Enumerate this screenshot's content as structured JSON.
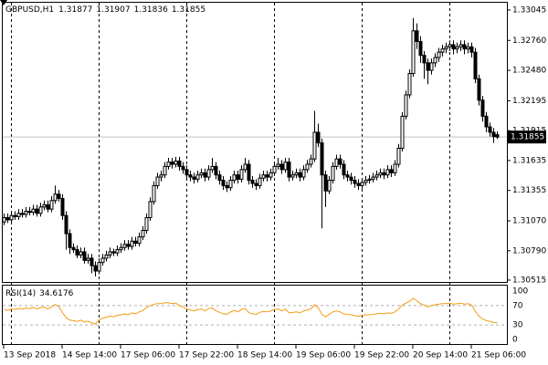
{
  "chart_data": {
    "type": "candlestick",
    "symbol": "GBPUSD,H1",
    "candles": [
      [
        1.3106,
        1.3114,
        1.3103,
        1.311
      ],
      [
        1.311,
        1.3114,
        1.3105,
        1.3108
      ],
      [
        1.3108,
        1.3116,
        1.3105,
        1.3112
      ],
      [
        1.3112,
        1.3116,
        1.3108,
        1.3111
      ],
      [
        1.3111,
        1.3118,
        1.3108,
        1.3114
      ],
      [
        1.3114,
        1.3118,
        1.311,
        1.3113
      ],
      [
        1.3113,
        1.312,
        1.311,
        1.3116
      ],
      [
        1.3116,
        1.312,
        1.3112,
        1.3115
      ],
      [
        1.3115,
        1.3122,
        1.3112,
        1.3118
      ],
      [
        1.3118,
        1.3122,
        1.3111,
        1.3114
      ],
      [
        1.3114,
        1.3124,
        1.3111,
        1.312
      ],
      [
        1.312,
        1.3126,
        1.3117,
        1.3122
      ],
      [
        1.3122,
        1.3126,
        1.3115,
        1.3118
      ],
      [
        1.3118,
        1.313,
        1.3115,
        1.3126
      ],
      [
        1.3126,
        1.314,
        1.3123,
        1.3132
      ],
      [
        1.3132,
        1.3136,
        1.3125,
        1.3128
      ],
      [
        1.3128,
        1.3132,
        1.3108,
        1.3112
      ],
      [
        1.3112,
        1.3116,
        1.308,
        1.3095
      ],
      [
        1.3095,
        1.3099,
        1.3076,
        1.3082
      ],
      [
        1.3082,
        1.3086,
        1.3077,
        1.308
      ],
      [
        1.308,
        1.3084,
        1.3072,
        1.3075
      ],
      [
        1.3075,
        1.3082,
        1.3072,
        1.3078
      ],
      [
        1.3078,
        1.3082,
        1.3067,
        1.307
      ],
      [
        1.307,
        1.3076,
        1.3067,
        1.3072
      ],
      [
        1.3072,
        1.3076,
        1.3058,
        1.3065
      ],
      [
        1.3065,
        1.3069,
        1.3055,
        1.306
      ],
      [
        1.306,
        1.3072,
        1.3057,
        1.3068
      ],
      [
        1.3068,
        1.3076,
        1.3065,
        1.3072
      ],
      [
        1.3072,
        1.3079,
        1.3069,
        1.3075
      ],
      [
        1.3075,
        1.3082,
        1.3072,
        1.3078
      ],
      [
        1.3078,
        1.3081,
        1.3074,
        1.3077
      ],
      [
        1.3077,
        1.3084,
        1.3074,
        1.308
      ],
      [
        1.308,
        1.3086,
        1.3077,
        1.3082
      ],
      [
        1.3082,
        1.3089,
        1.3079,
        1.3085
      ],
      [
        1.3085,
        1.3089,
        1.308,
        1.3083
      ],
      [
        1.3083,
        1.3092,
        1.308,
        1.3088
      ],
      [
        1.3088,
        1.3092,
        1.3083,
        1.3086
      ],
      [
        1.3086,
        1.3096,
        1.3083,
        1.3092
      ],
      [
        1.3092,
        1.3102,
        1.3089,
        1.3098
      ],
      [
        1.3098,
        1.3114,
        1.3095,
        1.311
      ],
      [
        1.311,
        1.3129,
        1.3107,
        1.3125
      ],
      [
        1.3125,
        1.3144,
        1.3122,
        1.314
      ],
      [
        1.314,
        1.3152,
        1.3137,
        1.3148
      ],
      [
        1.3148,
        1.3154,
        1.3144,
        1.315
      ],
      [
        1.315,
        1.3162,
        1.3147,
        1.3158
      ],
      [
        1.3158,
        1.3166,
        1.3155,
        1.3162
      ],
      [
        1.3162,
        1.3166,
        1.3156,
        1.316
      ],
      [
        1.316,
        1.3167,
        1.3157,
        1.3163
      ],
      [
        1.3163,
        1.3167,
        1.3154,
        1.3158
      ],
      [
        1.3158,
        1.3162,
        1.3151,
        1.3155
      ],
      [
        1.3155,
        1.3159,
        1.3146,
        1.315
      ],
      [
        1.315,
        1.3154,
        1.3144,
        1.3148
      ],
      [
        1.3148,
        1.3152,
        1.3142,
        1.3146
      ],
      [
        1.3146,
        1.3154,
        1.3143,
        1.315
      ],
      [
        1.315,
        1.3156,
        1.3147,
        1.3152
      ],
      [
        1.3152,
        1.3156,
        1.3144,
        1.3148
      ],
      [
        1.3148,
        1.3159,
        1.3145,
        1.3155
      ],
      [
        1.3155,
        1.3166,
        1.3152,
        1.3158
      ],
      [
        1.3158,
        1.3162,
        1.3146,
        1.315
      ],
      [
        1.315,
        1.3154,
        1.3141,
        1.3145
      ],
      [
        1.3145,
        1.3149,
        1.3136,
        1.314
      ],
      [
        1.314,
        1.3144,
        1.3134,
        1.3138
      ],
      [
        1.3138,
        1.3149,
        1.3135,
        1.3145
      ],
      [
        1.3145,
        1.3154,
        1.3142,
        1.315
      ],
      [
        1.315,
        1.3154,
        1.3142,
        1.3146
      ],
      [
        1.3146,
        1.3159,
        1.3143,
        1.3155
      ],
      [
        1.3155,
        1.3166,
        1.3152,
        1.316
      ],
      [
        1.316,
        1.3164,
        1.3141,
        1.3145
      ],
      [
        1.3145,
        1.3149,
        1.3138,
        1.3142
      ],
      [
        1.3142,
        1.3146,
        1.3136,
        1.314
      ],
      [
        1.314,
        1.3151,
        1.3137,
        1.3147
      ],
      [
        1.3147,
        1.3154,
        1.3144,
        1.315
      ],
      [
        1.315,
        1.3154,
        1.3144,
        1.3148
      ],
      [
        1.3148,
        1.3156,
        1.3145,
        1.3152
      ],
      [
        1.3152,
        1.3162,
        1.3149,
        1.3158
      ],
      [
        1.3158,
        1.3166,
        1.3155,
        1.316
      ],
      [
        1.316,
        1.3164,
        1.3151,
        1.3155
      ],
      [
        1.3155,
        1.3166,
        1.3152,
        1.3162
      ],
      [
        1.3162,
        1.3166,
        1.3144,
        1.3148
      ],
      [
        1.3148,
        1.3154,
        1.3145,
        1.315
      ],
      [
        1.315,
        1.3156,
        1.3147,
        1.3152
      ],
      [
        1.3152,
        1.3156,
        1.3144,
        1.3148
      ],
      [
        1.3148,
        1.3159,
        1.3145,
        1.3155
      ],
      [
        1.3155,
        1.3164,
        1.3152,
        1.316
      ],
      [
        1.316,
        1.3169,
        1.3157,
        1.3165
      ],
      [
        1.3165,
        1.321,
        1.3162,
        1.319
      ],
      [
        1.319,
        1.3198,
        1.3176,
        1.318
      ],
      [
        1.318,
        1.3184,
        1.31,
        1.315
      ],
      [
        1.315,
        1.3154,
        1.312,
        1.3135
      ],
      [
        1.3135,
        1.3149,
        1.3132,
        1.3145
      ],
      [
        1.3145,
        1.3162,
        1.3142,
        1.3158
      ],
      [
        1.3158,
        1.3169,
        1.3155,
        1.3165
      ],
      [
        1.3165,
        1.3169,
        1.3156,
        1.316
      ],
      [
        1.316,
        1.3164,
        1.3146,
        1.315
      ],
      [
        1.315,
        1.3154,
        1.3144,
        1.3148
      ],
      [
        1.3148,
        1.3152,
        1.3141,
        1.3145
      ],
      [
        1.3145,
        1.3149,
        1.3138,
        1.3142
      ],
      [
        1.3142,
        1.3146,
        1.3136,
        1.314
      ],
      [
        1.314,
        1.3147,
        1.3137,
        1.3143
      ],
      [
        1.3143,
        1.3149,
        1.314,
        1.3145
      ],
      [
        1.3145,
        1.315,
        1.3142,
        1.3146
      ],
      [
        1.3146,
        1.3152,
        1.3143,
        1.3148
      ],
      [
        1.3148,
        1.3154,
        1.3145,
        1.315
      ],
      [
        1.315,
        1.3156,
        1.3147,
        1.3152
      ],
      [
        1.3152,
        1.3156,
        1.3146,
        1.315
      ],
      [
        1.315,
        1.3159,
        1.3147,
        1.3155
      ],
      [
        1.3155,
        1.3159,
        1.3148,
        1.3152
      ],
      [
        1.3152,
        1.3164,
        1.3149,
        1.316
      ],
      [
        1.316,
        1.3179,
        1.3157,
        1.3175
      ],
      [
        1.3175,
        1.3209,
        1.3172,
        1.3205
      ],
      [
        1.3205,
        1.3229,
        1.3202,
        1.3225
      ],
      [
        1.3225,
        1.3249,
        1.3222,
        1.3245
      ],
      [
        1.3245,
        1.3297,
        1.3242,
        1.3285
      ],
      [
        1.3285,
        1.3292,
        1.3268,
        1.3275
      ],
      [
        1.3275,
        1.328,
        1.3255,
        1.3262
      ],
      [
        1.3262,
        1.3266,
        1.324,
        1.3255
      ],
      [
        1.3255,
        1.3259,
        1.3235,
        1.3248
      ],
      [
        1.3248,
        1.3259,
        1.3244,
        1.3255
      ],
      [
        1.3255,
        1.3264,
        1.3251,
        1.326
      ],
      [
        1.326,
        1.3269,
        1.3256,
        1.3265
      ],
      [
        1.3265,
        1.3272,
        1.3261,
        1.3268
      ],
      [
        1.3268,
        1.3274,
        1.3264,
        1.327
      ],
      [
        1.327,
        1.3276,
        1.3266,
        1.3272
      ],
      [
        1.3272,
        1.3276,
        1.3263,
        1.3268
      ],
      [
        1.3268,
        1.3274,
        1.3264,
        1.327
      ],
      [
        1.327,
        1.3276,
        1.3266,
        1.3272
      ],
      [
        1.3272,
        1.3276,
        1.3263,
        1.3268
      ],
      [
        1.3268,
        1.3274,
        1.3264,
        1.327
      ],
      [
        1.327,
        1.3274,
        1.326,
        1.3265
      ],
      [
        1.3265,
        1.3269,
        1.3236,
        1.324
      ],
      [
        1.324,
        1.3244,
        1.3215,
        1.322
      ],
      [
        1.322,
        1.3224,
        1.32,
        1.3205
      ],
      [
        1.3205,
        1.3209,
        1.319,
        1.3195
      ],
      [
        1.3195,
        1.3199,
        1.3186,
        1.319
      ],
      [
        1.319,
        1.3194,
        1.318,
        1.3186
      ],
      [
        1.31877,
        1.31907,
        1.31836,
        1.31855
      ]
    ],
    "ylim": [
      1.30489,
      1.33113
    ],
    "yticks": [
      {
        "value": 1.33045,
        "label": "1.33045"
      },
      {
        "value": 1.3276,
        "label": "1.32760"
      },
      {
        "value": 1.3248,
        "label": "1.32480"
      },
      {
        "value": 1.32195,
        "label": "1.32195"
      },
      {
        "value": 1.31915,
        "label": "1.31915"
      },
      {
        "value": 1.31635,
        "label": "1.31635"
      },
      {
        "value": 1.31355,
        "label": "1.31355"
      },
      {
        "value": 1.3107,
        "label": "1.31070"
      },
      {
        "value": 1.3079,
        "label": "1.30790"
      },
      {
        "value": 1.30515,
        "label": "1.30515"
      }
    ],
    "xticks": [
      {
        "value": 0,
        "label": "13 Sep 2018"
      },
      {
        "value": 16,
        "label": "14 Sep 14:00"
      },
      {
        "value": 32,
        "label": "17 Sep 06:00"
      },
      {
        "value": 48,
        "label": "17 Sep 22:00"
      },
      {
        "value": 64,
        "label": "18 Sep 14:00"
      },
      {
        "value": 80,
        "label": "19 Sep 06:00"
      },
      {
        "value": 96,
        "label": "19 Sep 22:00"
      },
      {
        "value": 112,
        "label": "20 Sep 14:00"
      },
      {
        "value": 128,
        "label": "21 Sep 06:00"
      }
    ],
    "period_separators": [
      2,
      26,
      50,
      74,
      98,
      122
    ],
    "indicator": {
      "name": "RSI(14)",
      "color": "#f39c12",
      "ylim": [
        0,
        100
      ],
      "yticks": [
        100,
        70,
        30,
        0
      ],
      "values": [
        62,
        60,
        63,
        62,
        64,
        63,
        65,
        64,
        66,
        63,
        66,
        67,
        63,
        68,
        72,
        68,
        55,
        45,
        40,
        39,
        37,
        40,
        36,
        38,
        34,
        32,
        40,
        44,
        46,
        48,
        47,
        50,
        51,
        53,
        51,
        55,
        53,
        57,
        60,
        66,
        70,
        73,
        74,
        74,
        76,
        76,
        74,
        75,
        70,
        67,
        63,
        61,
        59,
        62,
        63,
        59,
        64,
        65,
        59,
        56,
        53,
        52,
        57,
        60,
        57,
        62,
        64,
        55,
        53,
        52,
        56,
        58,
        57,
        59,
        62,
        63,
        59,
        63,
        55,
        56,
        57,
        55,
        59,
        61,
        63,
        72,
        65,
        52,
        47,
        52,
        57,
        59,
        57,
        53,
        52,
        51,
        49,
        48,
        50,
        51,
        51,
        52,
        53,
        54,
        53,
        55,
        54,
        57,
        63,
        71,
        75,
        79,
        85,
        80,
        74,
        71,
        67,
        70,
        72,
        73,
        74,
        74,
        75,
        73,
        74,
        75,
        73,
        74,
        71,
        58,
        48,
        42,
        39,
        37,
        35,
        34.6176
      ]
    }
  }
}
